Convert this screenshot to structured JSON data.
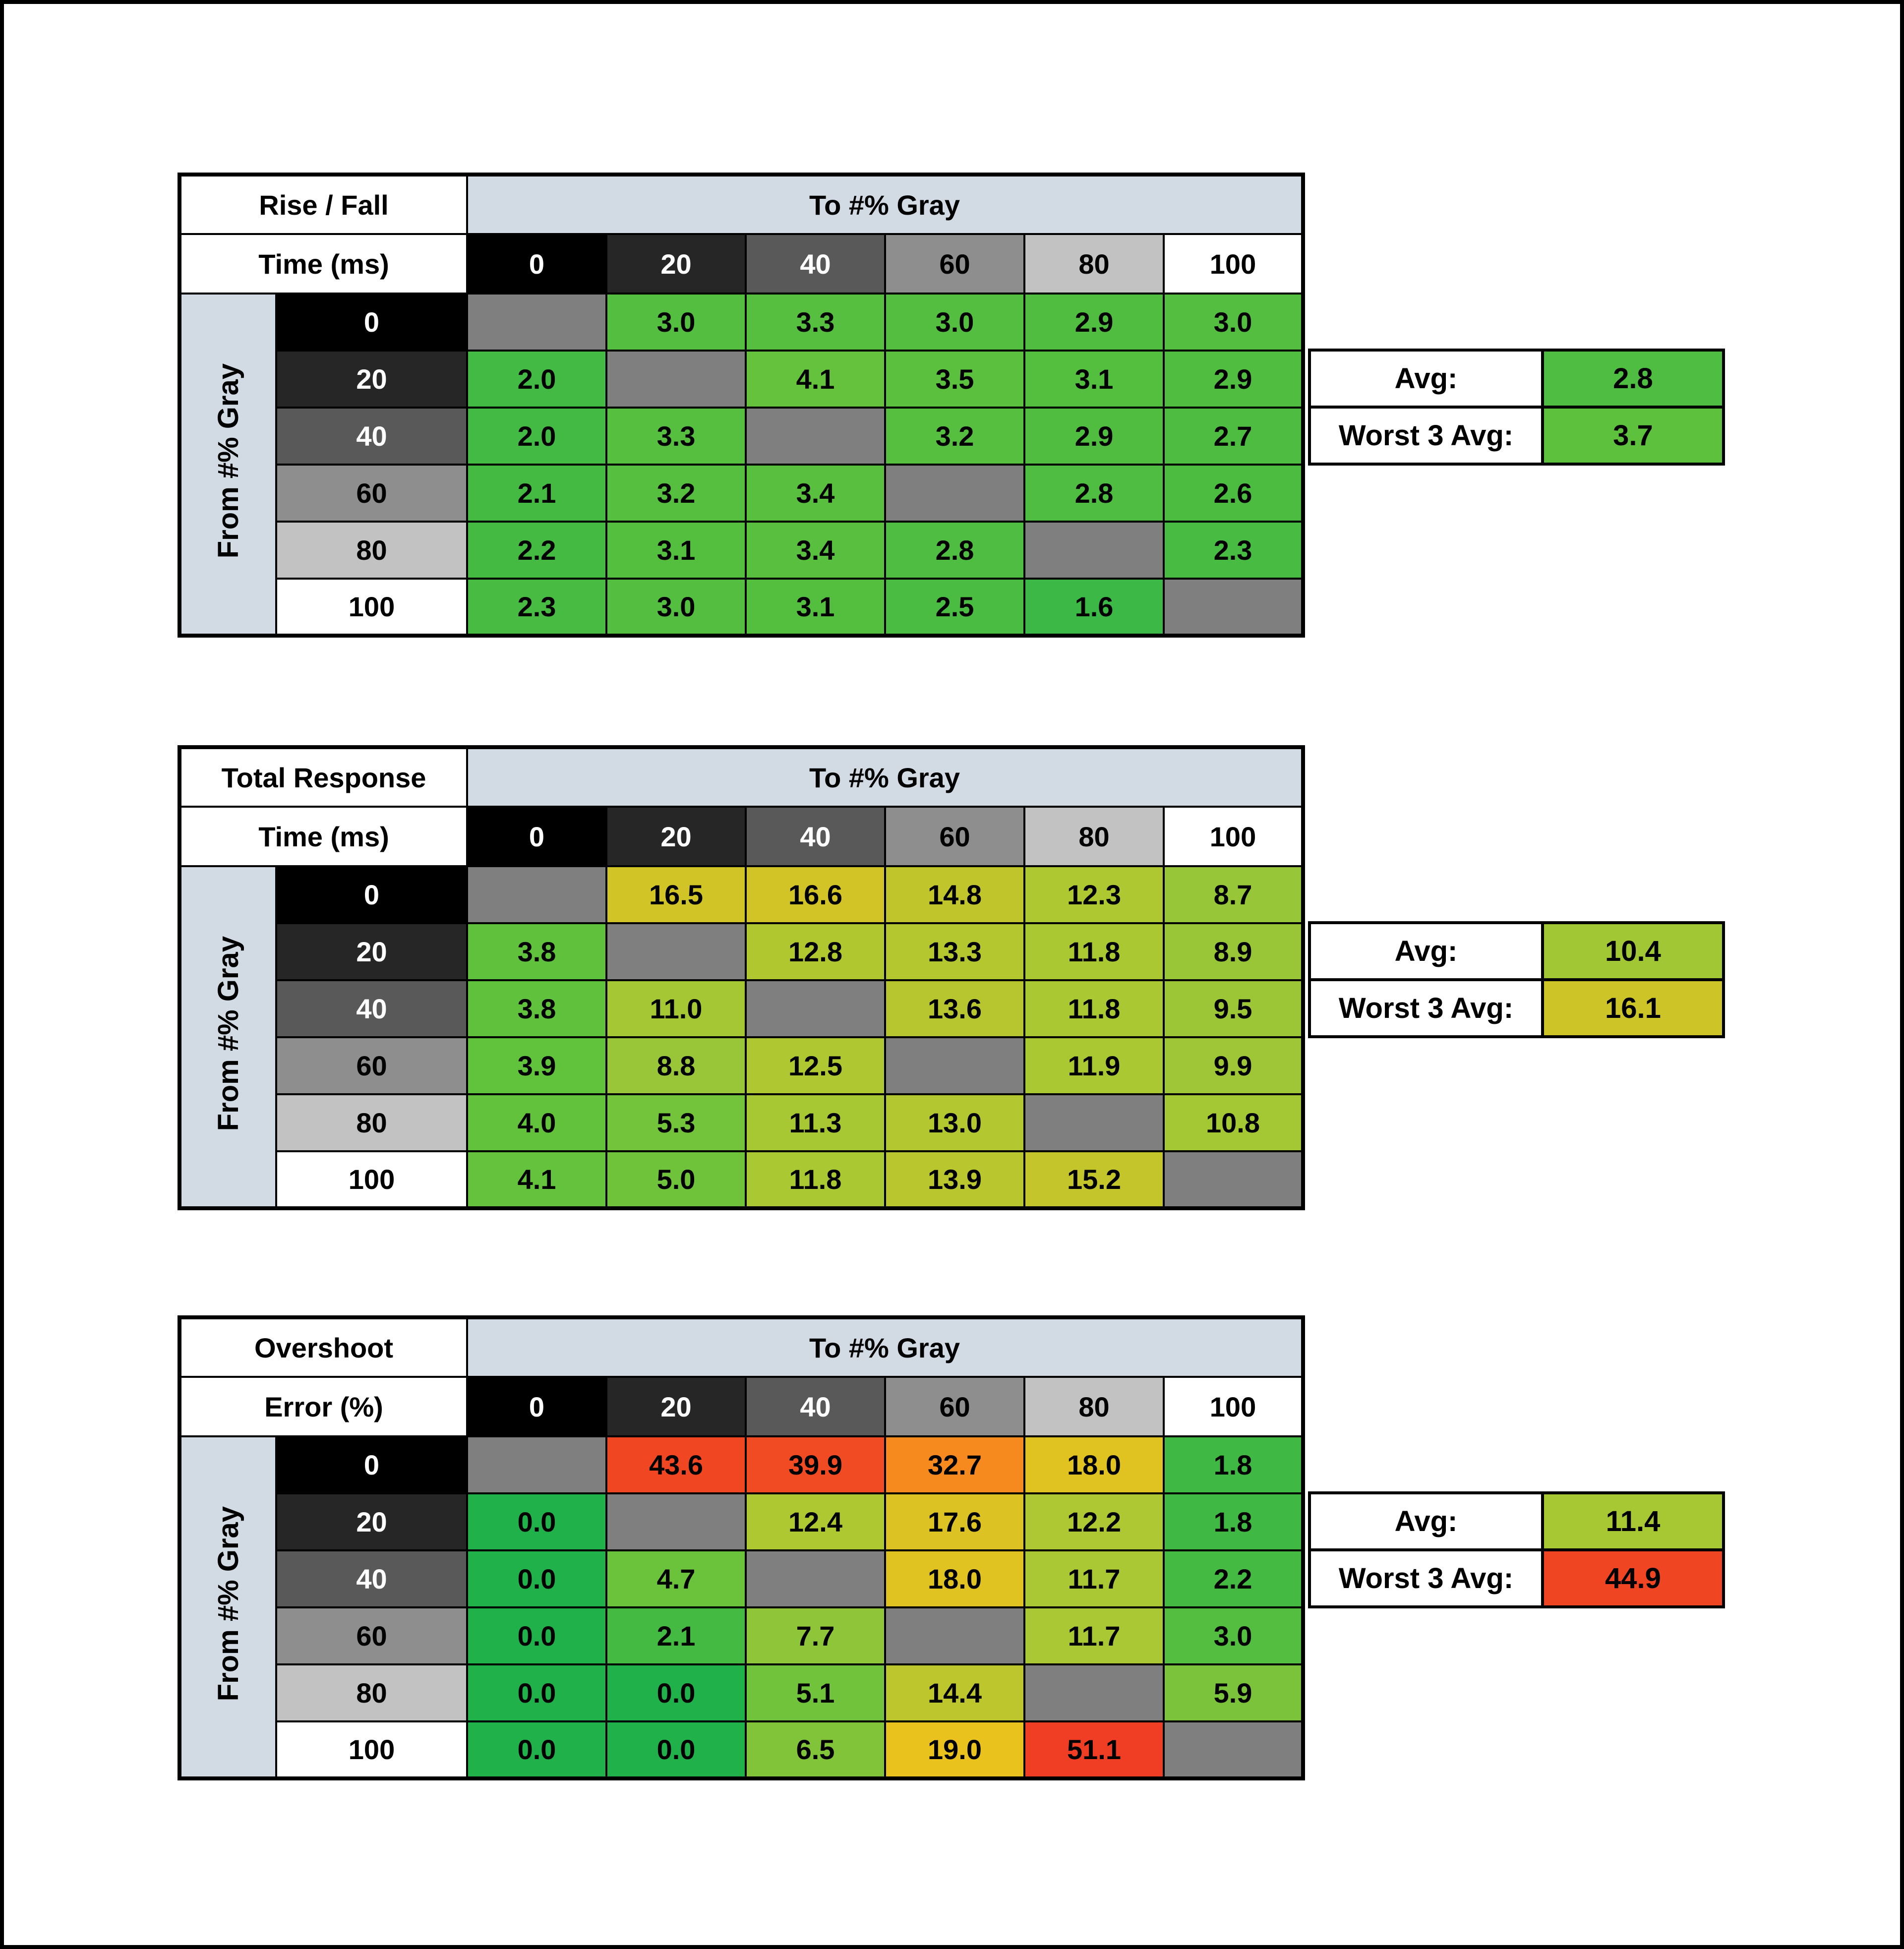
{
  "palette": {
    "background": "#ffffff",
    "border": "#000000",
    "header_band": "#d2dbe3",
    "diagonal_cell": "#7f7f7f",
    "gray_scale": [
      {
        "level": "0",
        "bg": "#000000",
        "fg": "#ffffff"
      },
      {
        "level": "20",
        "bg": "#262626",
        "fg": "#ffffff"
      },
      {
        "level": "40",
        "bg": "#595959",
        "fg": "#ffffff"
      },
      {
        "level": "60",
        "bg": "#8e8e8e",
        "fg": "#000000"
      },
      {
        "level": "80",
        "bg": "#c2c2c2",
        "fg": "#000000"
      },
      {
        "level": "100",
        "bg": "#ffffff",
        "fg": "#000000"
      }
    ],
    "colormap_stops": [
      [
        0,
        "#21b14b"
      ],
      [
        4,
        "#63c23c"
      ],
      [
        8,
        "#93c539"
      ],
      [
        12,
        "#abc832"
      ],
      [
        15,
        "#c2c52b"
      ],
      [
        19,
        "#eac21e"
      ],
      [
        33,
        "#f6891f"
      ],
      [
        40,
        "#f04a22"
      ],
      [
        55,
        "#ee3a23"
      ]
    ]
  },
  "chart_data": [
    {
      "type": "heatmap",
      "title": "Rise / Fall Time (ms)",
      "title_line1": "Rise / Fall",
      "title_line2": "Time (ms)",
      "xlabel": "To #% Gray",
      "ylabel": "From #% Gray",
      "x_categories": [
        "0",
        "20",
        "40",
        "60",
        "80",
        "100"
      ],
      "y_categories": [
        "0",
        "20",
        "40",
        "60",
        "80",
        "100"
      ],
      "values": [
        [
          null,
          3.0,
          3.3,
          3.0,
          2.9,
          3.0
        ],
        [
          2.0,
          null,
          4.1,
          3.5,
          3.1,
          2.9
        ],
        [
          2.0,
          3.3,
          null,
          3.2,
          2.9,
          2.7
        ],
        [
          2.1,
          3.2,
          3.4,
          null,
          2.8,
          2.6
        ],
        [
          2.2,
          3.1,
          3.4,
          2.8,
          null,
          2.3
        ],
        [
          2.3,
          3.0,
          3.1,
          2.5,
          1.6,
          null
        ]
      ],
      "summary": {
        "avg_label": "Avg:",
        "avg": 2.8,
        "worst_label": "Worst 3 Avg:",
        "worst": 3.7
      }
    },
    {
      "type": "heatmap",
      "title": "Total Response Time (ms)",
      "title_line1": "Total Response",
      "title_line2": "Time (ms)",
      "xlabel": "To #% Gray",
      "ylabel": "From #% Gray",
      "x_categories": [
        "0",
        "20",
        "40",
        "60",
        "80",
        "100"
      ],
      "y_categories": [
        "0",
        "20",
        "40",
        "60",
        "80",
        "100"
      ],
      "values": [
        [
          null,
          16.5,
          16.6,
          14.8,
          12.3,
          8.7
        ],
        [
          3.8,
          null,
          12.8,
          13.3,
          11.8,
          8.9
        ],
        [
          3.8,
          11.0,
          null,
          13.6,
          11.8,
          9.5
        ],
        [
          3.9,
          8.8,
          12.5,
          null,
          11.9,
          9.9
        ],
        [
          4.0,
          5.3,
          11.3,
          13.0,
          null,
          10.8
        ],
        [
          4.1,
          5.0,
          11.8,
          13.9,
          15.2,
          null
        ]
      ],
      "summary": {
        "avg_label": "Avg:",
        "avg": 10.4,
        "worst_label": "Worst 3 Avg:",
        "worst": 16.1
      }
    },
    {
      "type": "heatmap",
      "title": "Overshoot Error (%)",
      "title_line1": "Overshoot",
      "title_line2": "Error (%)",
      "xlabel": "To #% Gray",
      "ylabel": "From #% Gray",
      "x_categories": [
        "0",
        "20",
        "40",
        "60",
        "80",
        "100"
      ],
      "y_categories": [
        "0",
        "20",
        "40",
        "60",
        "80",
        "100"
      ],
      "values": [
        [
          null,
          43.6,
          39.9,
          32.7,
          18.0,
          1.8
        ],
        [
          0.0,
          null,
          12.4,
          17.6,
          12.2,
          1.8
        ],
        [
          0.0,
          4.7,
          null,
          18.0,
          11.7,
          2.2
        ],
        [
          0.0,
          2.1,
          7.7,
          null,
          11.7,
          3.0
        ],
        [
          0.0,
          0.0,
          5.1,
          14.4,
          null,
          5.9
        ],
        [
          0.0,
          0.0,
          6.5,
          19.0,
          51.1,
          null
        ]
      ],
      "summary": {
        "avg_label": "Avg:",
        "avg": 11.4,
        "worst_label": "Worst 3 Avg:",
        "worst": 44.9
      }
    }
  ]
}
